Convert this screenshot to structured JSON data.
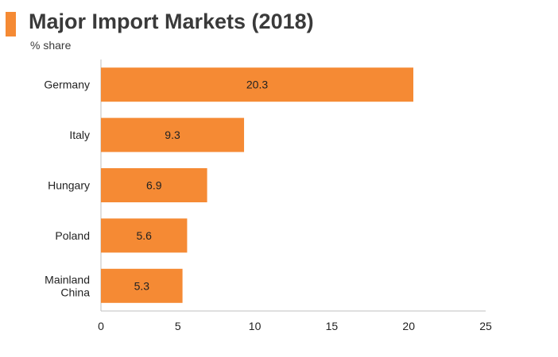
{
  "header": {
    "title": "Major Import Markets (2018)",
    "subtitle": "% share",
    "accent_color": "#F58A34"
  },
  "chart_data": {
    "type": "bar",
    "orientation": "horizontal",
    "title": "Major Import Markets (2018)",
    "subtitle": "% share",
    "categories": [
      [
        "Germany"
      ],
      [
        "Italy"
      ],
      [
        "Hungary"
      ],
      [
        "Poland"
      ],
      [
        "Mainland",
        "China"
      ]
    ],
    "values": [
      20.3,
      9.3,
      6.9,
      5.6,
      5.3
    ],
    "xlim": [
      0,
      25
    ],
    "x_ticks": [
      0,
      5,
      10,
      15,
      20,
      25
    ],
    "bar_color": "#F58A34",
    "grid": false,
    "legend": "none"
  }
}
